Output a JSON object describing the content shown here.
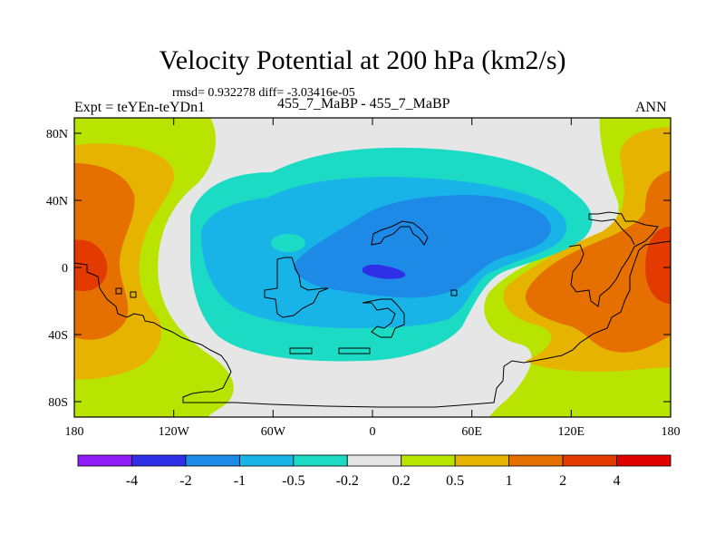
{
  "title": "Velocity Potential at 200 hPa (km2/s)",
  "stats": "rmsd= 0.932278 diff= -3.03416e-05",
  "experiment": "Expt = teYEn-teYDn1",
  "comparison": "455_7_MaBP - 455_7_MaBP",
  "season": "ANN",
  "axes": {
    "y_ticks": [
      "80N",
      "40N",
      "0",
      "40S",
      "80S"
    ],
    "x_ticks": [
      "180",
      "120W",
      "60W",
      "0",
      "60E",
      "120E",
      "180"
    ]
  },
  "colorbar": {
    "labels": [
      "-4",
      "-2",
      "-1",
      "-0.5",
      "-0.2",
      "0.2",
      "0.5",
      "1",
      "2",
      "4"
    ],
    "colors": [
      "#8f1df5",
      "#2f2fe8",
      "#1c8ae6",
      "#18b4e8",
      "#1bdbc4",
      "#e6e6e6",
      "#b8e400",
      "#e6b400",
      "#e57000",
      "#e33a00",
      "#e00000"
    ]
  }
}
